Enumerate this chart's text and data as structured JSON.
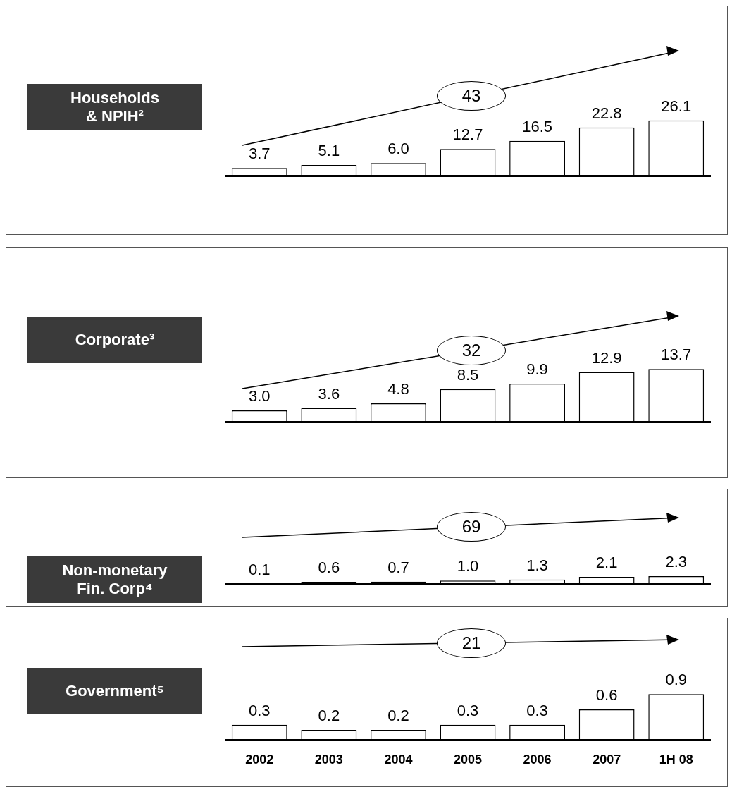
{
  "chart_data": [
    {
      "type": "bar",
      "title": "Households\n& NPIH²",
      "categories": [
        null,
        null,
        null,
        null,
        null,
        null,
        null
      ],
      "values": [
        3.7,
        5.1,
        6.0,
        12.7,
        16.5,
        22.8,
        26.1
      ],
      "value_labels": [
        "3.7",
        "5.1",
        "6.0",
        "12.7",
        "16.5",
        "22.8",
        "26.1"
      ],
      "color": "#ffffff",
      "annotations": [
        "43"
      ]
    },
    {
      "type": "bar",
      "title": "Corporate³",
      "categories": [
        null,
        null,
        null,
        null,
        null,
        null,
        null
      ],
      "values": [
        3.0,
        3.6,
        4.8,
        8.5,
        9.9,
        12.9,
        13.7
      ],
      "value_labels": [
        "3.0",
        "3.6",
        "4.8",
        "8.5",
        "9.9",
        "12.9",
        "13.7"
      ],
      "color": "#ffffff",
      "annotations": [
        "32"
      ]
    },
    {
      "type": "bar",
      "title": "Non-monetary\nFin. Corp⁴",
      "categories": [
        null,
        null,
        null,
        null,
        null,
        null,
        null
      ],
      "values": [
        0.1,
        0.6,
        0.7,
        1.0,
        1.3,
        2.1,
        2.3
      ],
      "value_labels": [
        "0.1",
        "0.6",
        "0.7",
        "1.0",
        "1.3",
        "2.1",
        "2.3"
      ],
      "color": "#ffffff",
      "annotations": [
        "69"
      ]
    },
    {
      "type": "bar",
      "title": "Government⁵",
      "categories": [
        "2002",
        "2003",
        "2004",
        "2005",
        "2006",
        "2007",
        "1H 08"
      ],
      "values": [
        0.3,
        0.2,
        0.2,
        0.3,
        0.3,
        0.6,
        0.9
      ],
      "value_labels": [
        "0.3",
        "0.2",
        "0.2",
        "0.3",
        "0.3",
        "0.6",
        "0.9"
      ],
      "color": "#ffffff",
      "annotations": [
        "21"
      ],
      "tick_labels": "x"
    }
  ]
}
